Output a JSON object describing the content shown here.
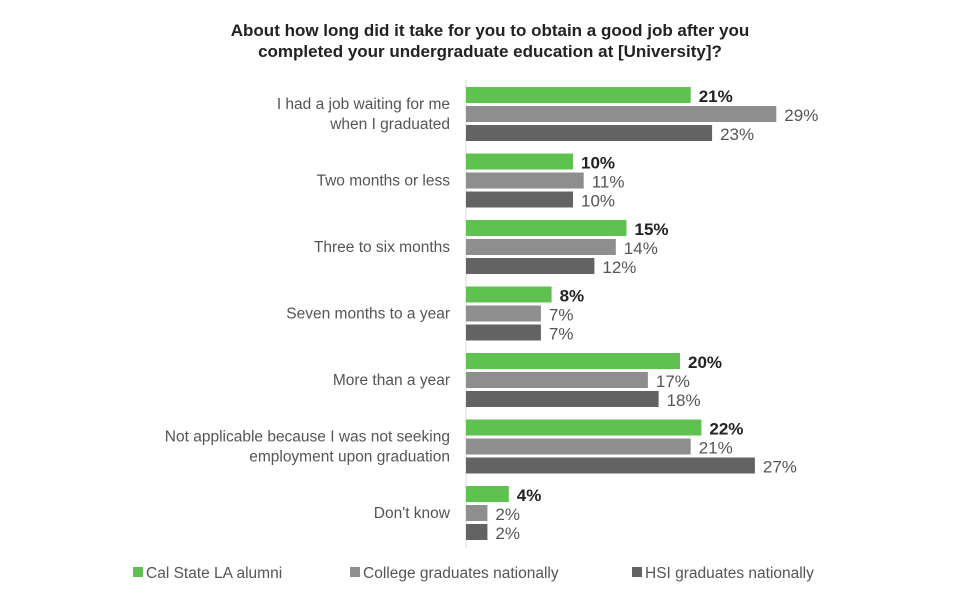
{
  "chart_data": {
    "type": "bar",
    "orientation": "horizontal",
    "title": "About how long did it take for you to obtain a good job after you completed your undergraduate education at [University]?",
    "title_lines": [
      "About how long did it take for you to obtain a good job after you",
      "completed your undergraduate education at [University]?"
    ],
    "categories": [
      [
        "I had a job waiting for me",
        "when I graduated"
      ],
      [
        "Two months or less"
      ],
      [
        "Three to six months"
      ],
      [
        "Seven months to a year"
      ],
      [
        "More than a year"
      ],
      [
        "Not applicable because I was not seeking",
        "employment upon graduation"
      ],
      [
        "Don't know"
      ]
    ],
    "series": [
      {
        "name": "Cal State LA alumni",
        "color": "#5fc150",
        "bold_labels": true,
        "values": [
          21,
          10,
          15,
          8,
          20,
          22,
          4
        ]
      },
      {
        "name": "College graduates nationally",
        "color": "#8e8e8e",
        "values": [
          29,
          11,
          14,
          7,
          17,
          21,
          2
        ]
      },
      {
        "name": "HSI graduates nationally",
        "color": "#636363",
        "values": [
          23,
          10,
          12,
          7,
          18,
          27,
          2
        ]
      }
    ],
    "value_suffix": "%",
    "xlim": [
      0,
      29
    ],
    "grid": false,
    "legend_position": "bottom"
  }
}
